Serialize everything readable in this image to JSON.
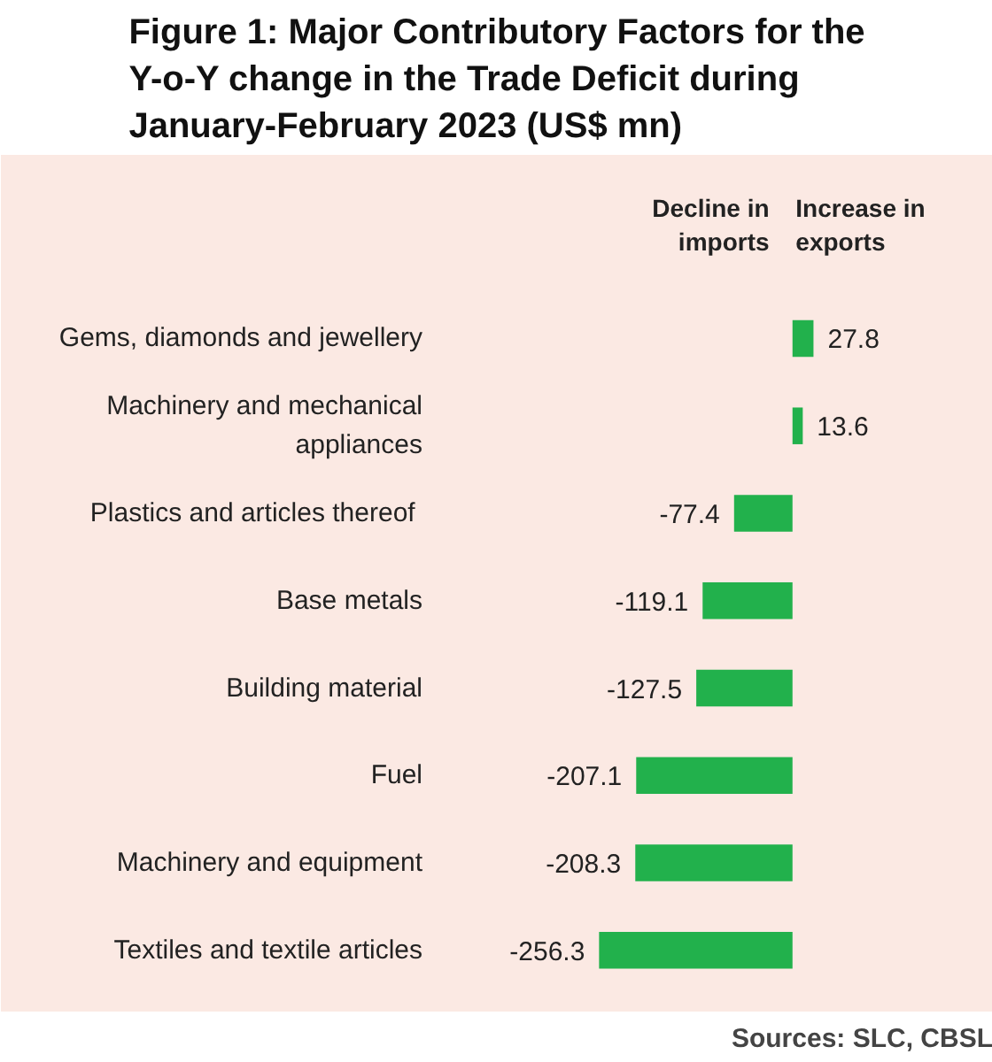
{
  "chart_data": {
    "type": "bar",
    "orientation": "horizontal",
    "title": "Figure 1: Major Contributory Factors for the Y-o-Y change in the Trade Deficit during January-February 2023 (US$ mn)",
    "categories": [
      "Gems, diamonds and jewellery",
      "Machinery and mechanical\nappliances",
      "Plastics  and articles thereof",
      "Base metals",
      "Building material",
      "Fuel",
      "Machinery and equipment",
      "Textiles and textile articles"
    ],
    "values": [
      27.8,
      13.6,
      -77.4,
      -119.1,
      -127.5,
      -207.1,
      -208.3,
      -256.3
    ],
    "color": "#22b14c",
    "data_labels": true,
    "annotations": [
      "Decline in\nimports",
      "Increase in\nexports",
      "Sources: SLC, CBSL"
    ]
  }
}
